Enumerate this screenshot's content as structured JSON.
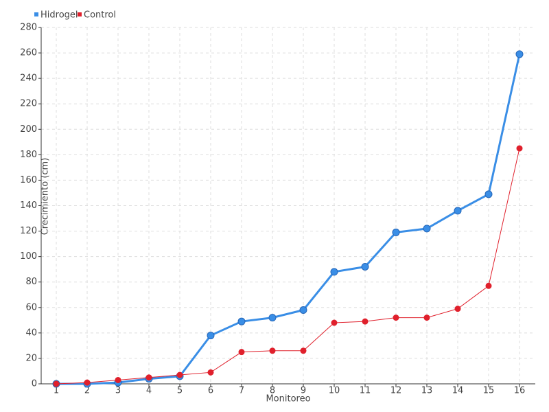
{
  "chart_data": {
    "type": "line",
    "x_label": "Monitoreo",
    "y_label": "Crecimiento (cm)",
    "categories": [
      "1",
      "2",
      "3",
      "4",
      "5",
      "6",
      "7",
      "8",
      "9",
      "10",
      "11",
      "12",
      "13",
      "14",
      "15",
      "16"
    ],
    "series": [
      {
        "name": "Hidrogel",
        "color": "#3a8ee6",
        "values": [
          0,
          0,
          1,
          4,
          6,
          38,
          49,
          52,
          58,
          88,
          92,
          119,
          122,
          136,
          149,
          259
        ]
      },
      {
        "name": "Control",
        "color": "#e0202c",
        "values": [
          0,
          1,
          3,
          5,
          7,
          9,
          25,
          26,
          26,
          48,
          49,
          52,
          52,
          59,
          77,
          185
        ]
      }
    ],
    "ylim": [
      0,
      280
    ],
    "yticks": [
      0,
      20,
      40,
      60,
      80,
      100,
      120,
      140,
      160,
      180,
      200,
      220,
      240,
      260,
      280
    ],
    "grid": true,
    "legend": "top-left"
  }
}
